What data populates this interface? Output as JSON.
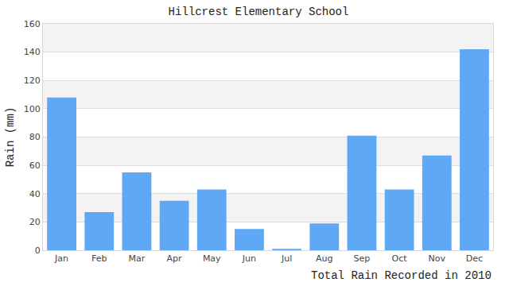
{
  "chart_data": {
    "type": "bar",
    "title": "Hillcrest Elementary School",
    "x_label": "Total Rain Recorded in 2010",
    "y_label": "Rain (mm)",
    "categories": [
      "Jan",
      "Feb",
      "Mar",
      "Apr",
      "May",
      "Jun",
      "Jul",
      "Aug",
      "Sep",
      "Oct",
      "Nov",
      "Dec"
    ],
    "values": [
      108,
      27,
      55,
      35,
      43,
      15,
      1,
      19,
      81,
      43,
      67,
      142
    ],
    "color": "#5ea8f5",
    "ylim": [
      0,
      160
    ],
    "yticks": [
      0,
      20,
      40,
      60,
      80,
      100,
      120,
      140,
      160
    ],
    "grid": true
  }
}
